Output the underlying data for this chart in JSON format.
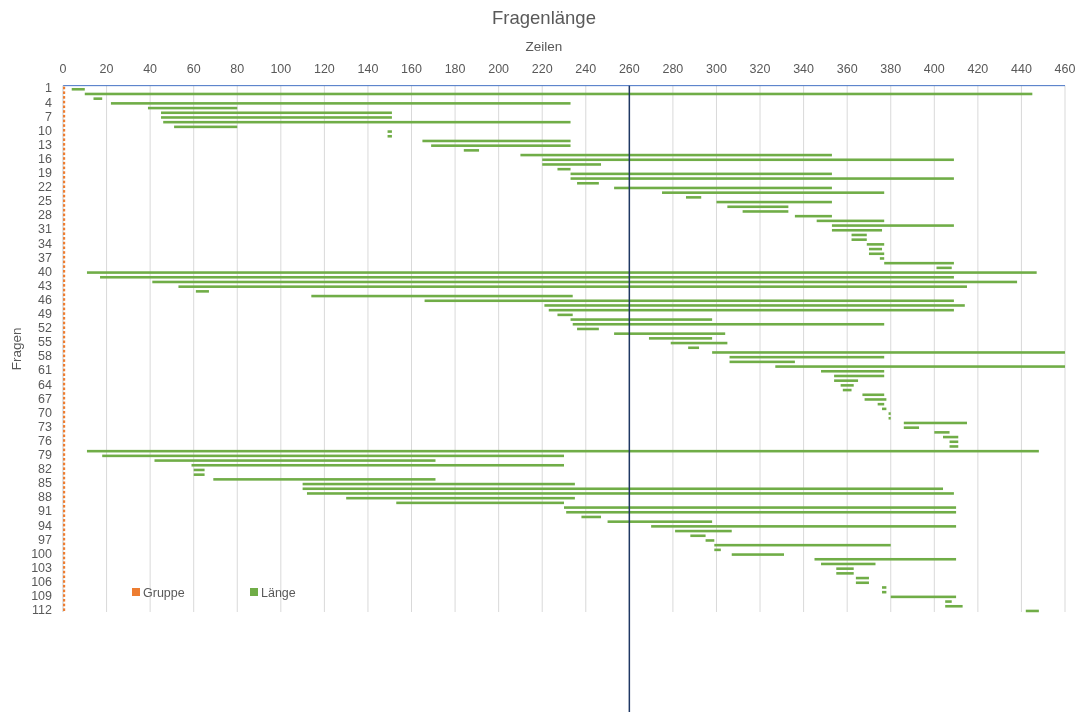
{
  "chart_data": {
    "type": "bar",
    "orientation": "horizontal",
    "title": "Fragenlänge",
    "xlabel": "Zeilen",
    "ylabel": "Fragen",
    "categories": [
      "1",
      null,
      null,
      "4",
      null,
      null,
      "7",
      null,
      null,
      "10",
      null,
      null,
      "13",
      null,
      null,
      "16",
      null,
      null,
      "19",
      null,
      null,
      "22",
      null,
      null,
      "25",
      null,
      null,
      "28",
      null,
      null,
      "31",
      null,
      null,
      "34",
      null,
      null,
      "37",
      null,
      null,
      "40",
      null,
      null,
      "43",
      null,
      null,
      "46",
      null,
      null,
      "49",
      null,
      null,
      "52",
      null,
      null,
      "55",
      null,
      null,
      "58",
      null,
      null,
      "61",
      null,
      null,
      "64",
      null,
      null,
      "67",
      null,
      null,
      "70",
      null,
      null,
      "73",
      null,
      null,
      "76",
      null,
      null,
      "79",
      null,
      null,
      "82",
      null,
      null,
      "85",
      null,
      null,
      "88",
      null,
      null,
      "91",
      null,
      null,
      "94",
      null,
      null,
      "97",
      null,
      null,
      "100",
      null,
      null,
      "103",
      null,
      null,
      "106",
      null,
      null,
      "109",
      null,
      null,
      "112"
    ],
    "series": [
      {
        "name": "Gruppe",
        "color": "#ed7d31",
        "values": [
          1,
          1,
          1,
          1,
          1,
          1,
          1,
          1,
          1,
          1,
          1,
          1,
          1,
          1,
          1,
          1,
          1,
          1,
          1,
          1,
          1,
          1,
          1,
          1,
          1,
          1,
          1,
          1,
          1,
          1,
          1,
          1,
          1,
          1,
          1,
          1,
          1,
          1,
          1,
          1,
          1,
          1,
          1,
          1,
          1,
          1,
          1,
          1,
          1,
          1,
          1,
          1,
          1,
          1,
          1,
          1,
          1,
          1,
          1,
          1,
          1,
          1,
          1,
          1,
          1,
          1,
          1,
          1,
          1,
          1,
          1,
          1,
          1,
          1,
          1,
          1,
          1,
          1,
          1,
          1,
          1,
          1,
          1,
          1,
          1,
          1,
          1,
          1,
          1,
          1,
          1,
          1,
          1,
          1,
          1,
          1,
          1,
          1,
          1,
          1,
          1,
          1,
          1,
          1,
          1,
          1,
          1,
          1,
          1,
          1,
          1,
          1
        ]
      },
      {
        "name": "Länge",
        "color": "#70ad47",
        "base": [
          4,
          10,
          14,
          22,
          39,
          45,
          45,
          46,
          51,
          149,
          149,
          165,
          169,
          184,
          210,
          220,
          220,
          227,
          233,
          233,
          236,
          253,
          275,
          286,
          300,
          305,
          312,
          336,
          346,
          353,
          353,
          362,
          362,
          369,
          370,
          370,
          375,
          377,
          401,
          11,
          17,
          41,
          53,
          61,
          114,
          166,
          221,
          223,
          227,
          233,
          234,
          236,
          253,
          269,
          279,
          287,
          298,
          306,
          306,
          327,
          348,
          354,
          354,
          357,
          358,
          367,
          368,
          374,
          376,
          379,
          379,
          386,
          386,
          400,
          404,
          407,
          407,
          11,
          18,
          42,
          59,
          60,
          60,
          69,
          110,
          110,
          112,
          130,
          153,
          230,
          231,
          238,
          250,
          270,
          281,
          288,
          295,
          299,
          299,
          307,
          345,
          348,
          355,
          355,
          364,
          364,
          376,
          376,
          380,
          405,
          405,
          442
        ],
        "values": [
          6,
          435,
          4,
          211,
          41,
          106,
          106,
          187,
          29,
          2,
          2,
          68,
          64,
          7,
          143,
          189,
          27,
          6,
          120,
          176,
          10,
          100,
          102,
          7,
          53,
          28,
          21,
          17,
          31,
          56,
          23,
          7,
          7,
          8,
          6,
          7,
          2,
          32,
          7,
          436,
          392,
          397,
          362,
          6,
          120,
          243,
          193,
          186,
          7,
          65,
          143,
          10,
          51,
          29,
          26,
          5,
          162,
          71,
          30,
          133,
          29,
          23,
          11,
          6,
          4,
          10,
          10,
          3,
          2,
          1,
          1,
          29,
          7,
          7,
          7,
          4,
          4,
          437,
          212,
          129,
          171,
          5,
          5,
          102,
          125,
          294,
          297,
          105,
          77,
          180,
          179,
          9,
          48,
          140,
          26,
          7,
          4,
          81,
          3,
          24,
          65,
          25,
          8,
          8,
          6,
          6,
          2,
          2,
          30,
          3,
          8,
          6
        ]
      }
    ],
    "xlim": [
      0,
      460
    ],
    "xticks": [
      0,
      20,
      40,
      60,
      80,
      100,
      120,
      140,
      160,
      180,
      200,
      220,
      240,
      260,
      280,
      300,
      320,
      340,
      360,
      380,
      400,
      420,
      440,
      460
    ],
    "grid": "x",
    "legend": "bottom left",
    "ref_lines": [
      {
        "axis": "x",
        "value": 260,
        "color": "#1f3864"
      }
    ]
  }
}
